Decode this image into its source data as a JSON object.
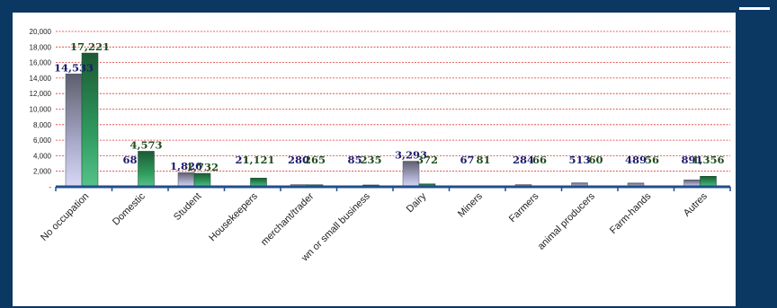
{
  "chart_data": {
    "type": "bar",
    "categories": [
      "No occupation",
      "Domestic",
      "Student",
      "Housekeepers",
      "merchant/trader",
      "wn or small business",
      "Dairy",
      "Miners",
      "Farmers",
      "animal producers",
      "Farm-hands",
      "Autres"
    ],
    "series": [
      {
        "values": [
          14533,
          68,
          1826,
          21,
          280,
          85,
          3293,
          67,
          284,
          513,
          489,
          891
        ]
      },
      {
        "values": [
          17221,
          4573,
          1732,
          1121,
          265,
          235,
          372,
          81,
          66,
          60,
          56,
          1356
        ]
      }
    ],
    "value_labels": [
      [
        "14,533",
        "68",
        "1,826",
        "21",
        "280",
        "85",
        "3,293",
        "67",
        "284",
        "513",
        "489",
        "891"
      ],
      [
        "17,221",
        "4,573",
        "1,732",
        "1,121",
        "265",
        "235",
        "372",
        "81",
        "66",
        "60",
        "56",
        "1,356"
      ]
    ],
    "yticks": [
      20000,
      18000,
      16000,
      14000,
      12000,
      10000,
      8000,
      6000,
      4000,
      2000,
      0
    ],
    "ytick_labels": [
      "20,000",
      "18,000",
      "16,000",
      "14,000",
      "12,000",
      "10,000",
      "8,000",
      "6,000",
      "4,000",
      "2,000",
      "-"
    ],
    "ylim": [
      0,
      20000
    ],
    "grid": true,
    "legend": "none"
  },
  "colors": {
    "series1_label": "#1a1a6e",
    "series2_label": "#1f4d1f",
    "grid": "#e03030",
    "axis": "#1f4e8c"
  }
}
